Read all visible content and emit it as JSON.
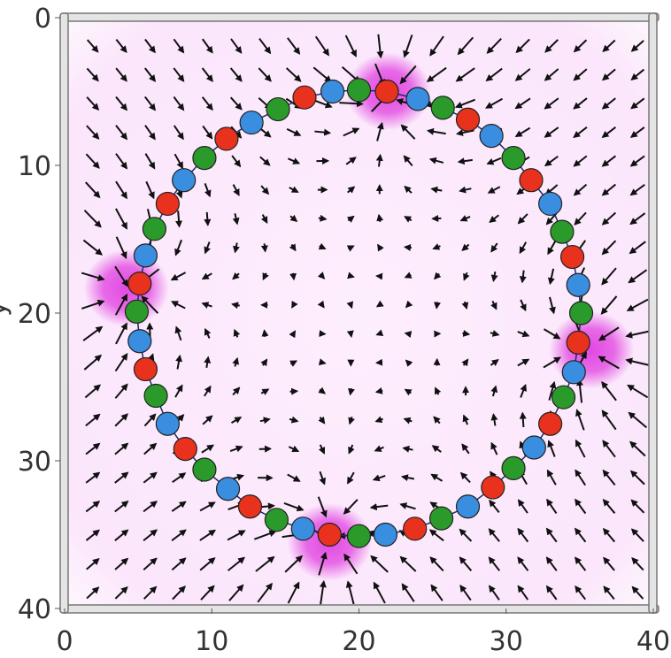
{
  "chart_data": {
    "type": "scatter",
    "title": "",
    "xlabel": "",
    "ylabel": "y",
    "xlim": [
      0,
      40
    ],
    "ylim": [
      40,
      0
    ],
    "y_inverted": true,
    "grid": false,
    "x_ticks": [
      "0",
      "10",
      "20",
      "30",
      "40"
    ],
    "y_ticks": [
      "0",
      "10",
      "20",
      "30",
      "40"
    ],
    "x_tick_values": [
      0,
      10,
      20,
      30,
      40
    ],
    "y_tick_values": [
      0,
      10,
      20,
      30,
      40
    ],
    "background_color": "#fbe8fb",
    "highlight_color": "#e040e0",
    "highlight_regions": [
      {
        "x": 22,
        "y": 5
      },
      {
        "x": 35.8,
        "y": 22.5
      },
      {
        "x": 18,
        "y": 35.5
      },
      {
        "x": 4.2,
        "y": 18.3
      }
    ],
    "bead_colors": {
      "red": "#e8321e",
      "blue": "#3a8ee0",
      "green": "#2a9a2a"
    },
    "beads": [
      {
        "x": 21.9,
        "y": 5.0,
        "c": "red"
      },
      {
        "x": 24.0,
        "y": 5.5,
        "c": "blue"
      },
      {
        "x": 25.7,
        "y": 6.1,
        "c": "green"
      },
      {
        "x": 27.4,
        "y": 6.9,
        "c": "red"
      },
      {
        "x": 29.0,
        "y": 8.0,
        "c": "blue"
      },
      {
        "x": 30.5,
        "y": 9.5,
        "c": "green"
      },
      {
        "x": 31.7,
        "y": 11.0,
        "c": "red"
      },
      {
        "x": 33.0,
        "y": 12.6,
        "c": "blue"
      },
      {
        "x": 33.8,
        "y": 14.5,
        "c": "green"
      },
      {
        "x": 34.5,
        "y": 16.2,
        "c": "red"
      },
      {
        "x": 34.9,
        "y": 18.1,
        "c": "blue"
      },
      {
        "x": 35.1,
        "y": 20.0,
        "c": "green"
      },
      {
        "x": 34.9,
        "y": 22.0,
        "c": "red"
      },
      {
        "x": 34.6,
        "y": 24.0,
        "c": "blue"
      },
      {
        "x": 33.9,
        "y": 25.7,
        "c": "green"
      },
      {
        "x": 33.0,
        "y": 27.5,
        "c": "red"
      },
      {
        "x": 31.9,
        "y": 29.1,
        "c": "blue"
      },
      {
        "x": 30.5,
        "y": 30.5,
        "c": "green"
      },
      {
        "x": 29.1,
        "y": 31.8,
        "c": "red"
      },
      {
        "x": 27.4,
        "y": 33.1,
        "c": "blue"
      },
      {
        "x": 25.6,
        "y": 33.9,
        "c": "green"
      },
      {
        "x": 23.8,
        "y": 34.6,
        "c": "red"
      },
      {
        "x": 21.8,
        "y": 35.0,
        "c": "blue"
      },
      {
        "x": 20.0,
        "y": 35.1,
        "c": "green"
      },
      {
        "x": 18.0,
        "y": 35.0,
        "c": "red"
      },
      {
        "x": 16.2,
        "y": 34.6,
        "c": "blue"
      },
      {
        "x": 14.4,
        "y": 34.0,
        "c": "green"
      },
      {
        "x": 12.6,
        "y": 33.1,
        "c": "red"
      },
      {
        "x": 11.1,
        "y": 31.9,
        "c": "blue"
      },
      {
        "x": 9.5,
        "y": 30.6,
        "c": "green"
      },
      {
        "x": 8.2,
        "y": 29.2,
        "c": "red"
      },
      {
        "x": 7.0,
        "y": 27.5,
        "c": "blue"
      },
      {
        "x": 6.2,
        "y": 25.6,
        "c": "green"
      },
      {
        "x": 5.5,
        "y": 23.8,
        "c": "red"
      },
      {
        "x": 5.1,
        "y": 21.9,
        "c": "blue"
      },
      {
        "x": 4.9,
        "y": 19.9,
        "c": "green"
      },
      {
        "x": 5.1,
        "y": 18.0,
        "c": "red"
      },
      {
        "x": 5.5,
        "y": 16.1,
        "c": "blue"
      },
      {
        "x": 6.1,
        "y": 14.3,
        "c": "green"
      },
      {
        "x": 7.0,
        "y": 12.6,
        "c": "red"
      },
      {
        "x": 8.1,
        "y": 11.0,
        "c": "blue"
      },
      {
        "x": 9.5,
        "y": 9.5,
        "c": "green"
      },
      {
        "x": 11.0,
        "y": 8.2,
        "c": "red"
      },
      {
        "x": 12.7,
        "y": 7.1,
        "c": "blue"
      },
      {
        "x": 14.5,
        "y": 6.2,
        "c": "green"
      },
      {
        "x": 16.3,
        "y": 5.4,
        "c": "red"
      },
      {
        "x": 18.2,
        "y": 5.0,
        "c": "blue"
      },
      {
        "x": 20.0,
        "y": 4.9,
        "c": "green"
      }
    ],
    "quiver": {
      "x_start": 1.9,
      "y_start": 1.9,
      "step": 1.95,
      "count": 20,
      "color": "#111111"
    }
  }
}
